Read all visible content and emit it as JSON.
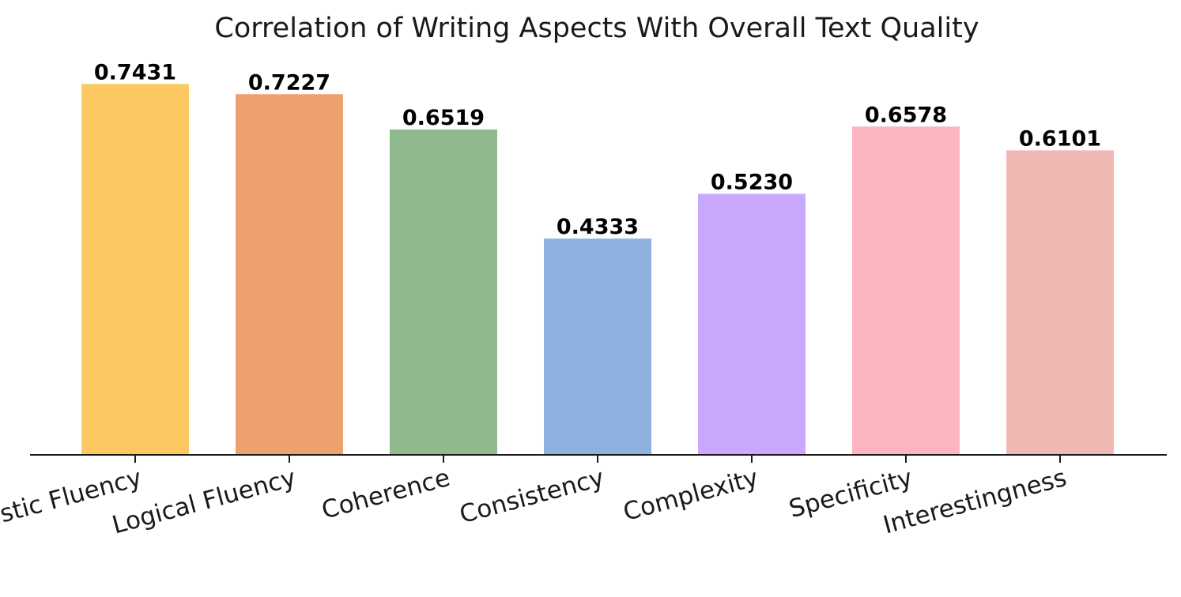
{
  "chart_data": {
    "type": "bar",
    "title": "Correlation of Writing Aspects With Overall Text Quality",
    "xlabel": "",
    "ylabel": "",
    "categories": [
      "Linguistic Fluency",
      "Logical Fluency",
      "Coherence",
      "Consistency",
      "Complexity",
      "Specificity",
      "Interestingness"
    ],
    "values": [
      0.7431,
      0.7227,
      0.6519,
      0.4333,
      0.523,
      0.6578,
      0.6101
    ],
    "value_labels": [
      "0.7431",
      "0.7227",
      "0.6519",
      "0.4333",
      "0.5230",
      "0.6578",
      "0.6101"
    ],
    "colors": [
      "#fdc862",
      "#eda16e",
      "#8fba8e",
      "#8eb1e0",
      "#c8a9fd",
      "#fdb4c1",
      "#efb8b2"
    ],
    "ylim": [
      0,
      0.75
    ],
    "grid": false,
    "legend": "none",
    "tick_label_rotation_deg": -15
  }
}
